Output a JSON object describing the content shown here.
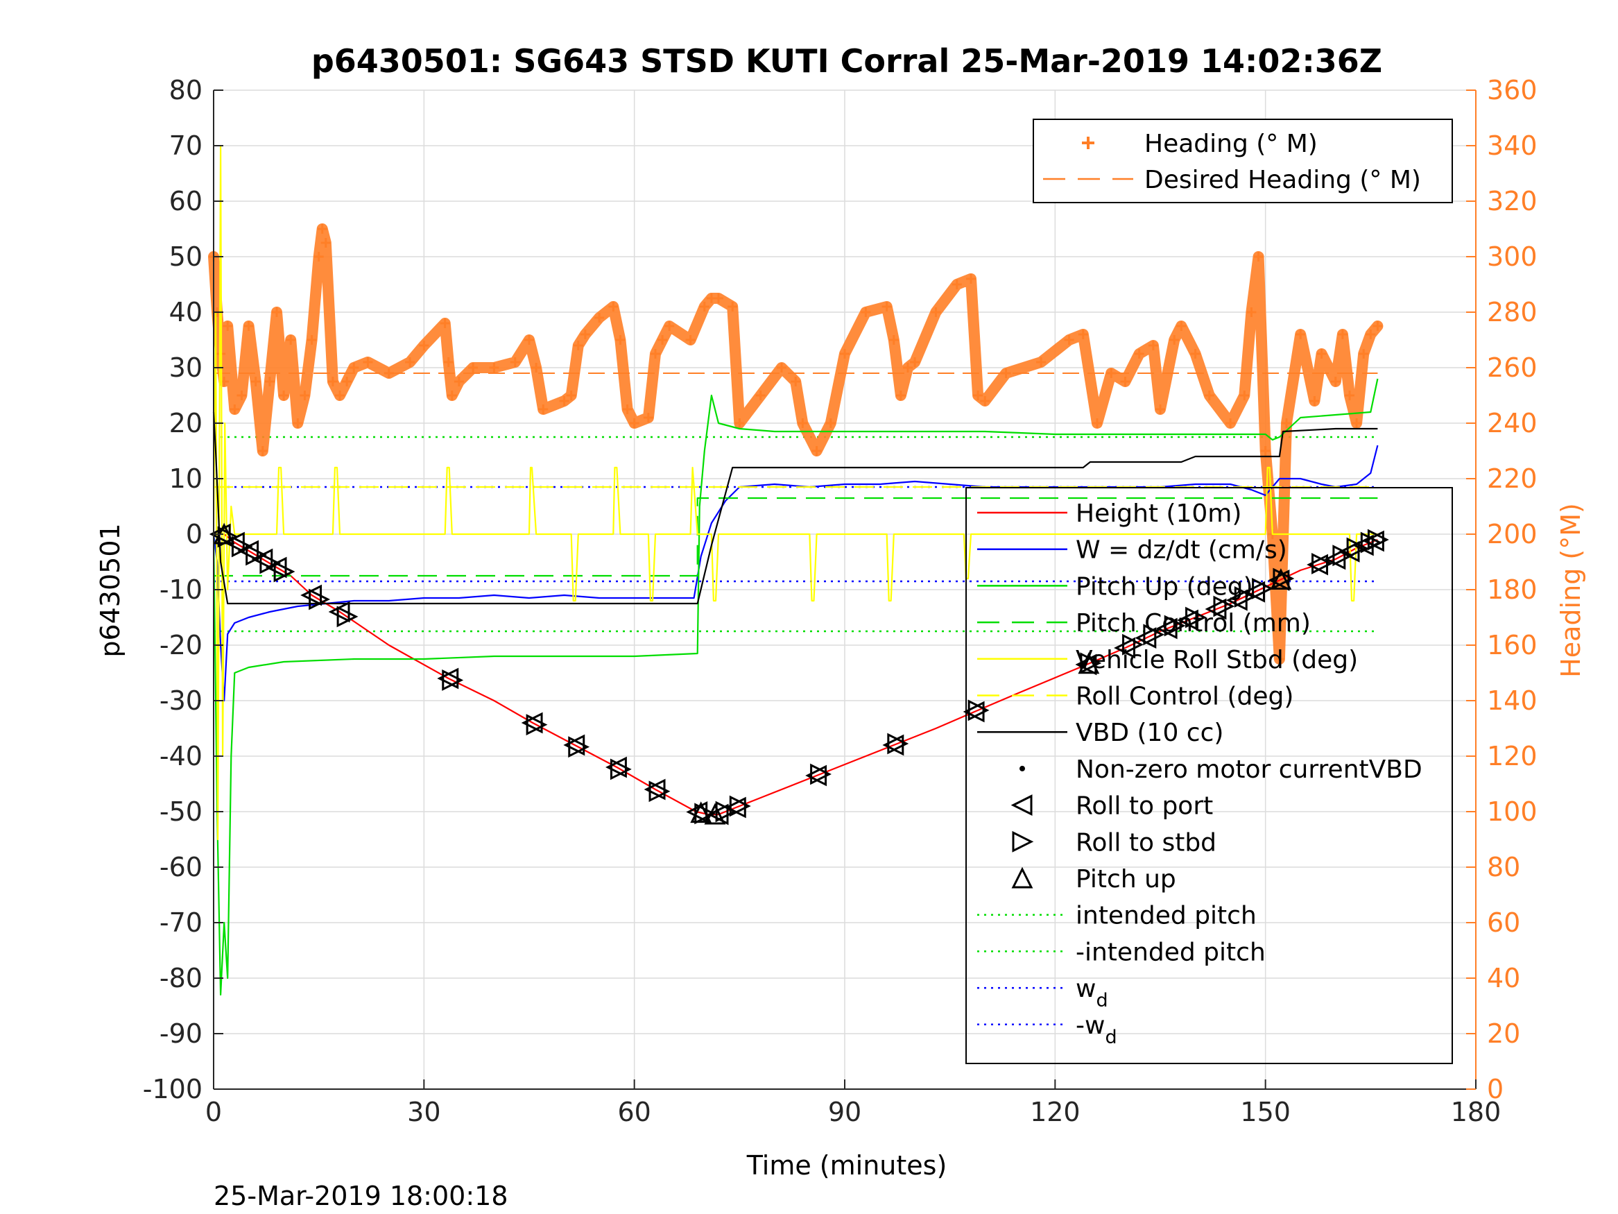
{
  "chart_data": {
    "type": "line",
    "title": "p6430501: SG643 STSD KUTI Corral 25-Mar-2019 14:02:36Z",
    "xlabel": "Time (minutes)",
    "ylabel_left": "p6430501",
    "ylabel_right": "Heading (°M)",
    "footer": "25-Mar-2019 18:00:18",
    "xlim": [
      0,
      180
    ],
    "ylim_left": [
      -100,
      80
    ],
    "ylim_right": [
      0,
      360
    ],
    "x_ticks": [
      0,
      30,
      60,
      90,
      120,
      150,
      180
    ],
    "x_tick_labels": [
      "0",
      "30",
      "60",
      "90",
      "120",
      "150",
      "180"
    ],
    "y_left_ticks": [
      80,
      70,
      60,
      50,
      40,
      30,
      20,
      10,
      0,
      -10,
      -20,
      -30,
      -40,
      -50,
      -60,
      -70,
      -80,
      -90,
      -100
    ],
    "y_left_tick_labels": [
      "80",
      "70",
      "60",
      "50",
      "40",
      "30",
      "20",
      "10",
      "0",
      "-10",
      "-20",
      "-30",
      "-40",
      "-50",
      "-60",
      "-70",
      "-80",
      "-90",
      "-100"
    ],
    "y_right_ticks": [
      360,
      340,
      320,
      300,
      280,
      260,
      240,
      220,
      200,
      180,
      160,
      140,
      120,
      100,
      80,
      60,
      40,
      20,
      0
    ],
    "y_right_tick_labels": [
      "360",
      "340",
      "320",
      "300",
      "280",
      "260",
      "240",
      "220",
      "200",
      "180",
      "160",
      "140",
      "120",
      "100",
      "80",
      "60",
      "40",
      "20",
      "0"
    ],
    "grid": true,
    "colors": {
      "height": "#ff0000",
      "w": "#0000ff",
      "pitch": "#00dd00",
      "roll": "#ffff00",
      "vbd": "#000000",
      "heading": "#ff7f27",
      "right_axis": "#ff7f27"
    },
    "legend_top": {
      "placement": "top-right",
      "entries": [
        {
          "label": "Heading (° M)",
          "marker": "plus",
          "color": "#ff7f27"
        },
        {
          "label": "Desired Heading (° M)",
          "marker": "dash",
          "color": "#ff7f27"
        }
      ]
    },
    "legend_main": {
      "placement": "right",
      "entries": [
        {
          "label": "Height (10m)",
          "marker": "line",
          "color": "#ff0000"
        },
        {
          "label": "W = dz/dt (cm/s)",
          "marker": "line",
          "color": "#0000ff"
        },
        {
          "label": "Pitch Up (deg)",
          "marker": "line",
          "color": "#00dd00"
        },
        {
          "label": "Pitch Control (mm)",
          "marker": "dash",
          "color": "#00dd00"
        },
        {
          "label": "Vehicle Roll Stbd (deg)",
          "marker": "line",
          "color": "#ffff00"
        },
        {
          "label": "Roll Control (deg)",
          "marker": "dash",
          "color": "#ffff00"
        },
        {
          "label": "VBD (10 cc)",
          "marker": "line",
          "color": "#000000"
        },
        {
          "label": "Non-zero motor currentVBD",
          "marker": "dot",
          "color": "#000000"
        },
        {
          "label": "Roll to port",
          "marker": "tri-left",
          "color": "#000000"
        },
        {
          "label": "Roll to stbd",
          "marker": "tri-right",
          "color": "#000000"
        },
        {
          "label": "Pitch up",
          "marker": "tri-up",
          "color": "#000000"
        },
        {
          "label": "intended pitch",
          "marker": "dotted",
          "color": "#00dd00"
        },
        {
          "label": "-intended pitch",
          "marker": "dotted",
          "color": "#00dd00"
        },
        {
          "label": "w",
          "sub": "d",
          "marker": "dotted",
          "color": "#0000ff"
        },
        {
          "label": "-w",
          "sub": "d",
          "marker": "dotted",
          "color": "#0000ff"
        }
      ]
    },
    "reference_lines": [
      {
        "name": "intended pitch",
        "y": 17.5,
        "color": "#00dd00"
      },
      {
        "name": "-intended pitch",
        "y": -17.5,
        "color": "#00dd00"
      },
      {
        "name": "w_d",
        "y": 8.5,
        "color": "#0000ff"
      },
      {
        "name": "-w_d",
        "y": -8.5,
        "color": "#0000ff"
      }
    ],
    "series": [
      {
        "name": "Height (10m)",
        "color": "#ff0000",
        "x": [
          0,
          1.5,
          3,
          5,
          7,
          9,
          11,
          14,
          16,
          18,
          25,
          33.5,
          40,
          45.5,
          51.5,
          57.5,
          63,
          68.8,
          70.5,
          72,
          74,
          78,
          86,
          92,
          97,
          103,
          108.5,
          115,
          124.5,
          130,
          135,
          140,
          145,
          150,
          155,
          160,
          163,
          166
        ],
        "y": [
          0,
          0,
          -1.5,
          -3,
          -4.5,
          -6,
          -7.5,
          -11,
          -12.5,
          -14,
          -20,
          -26,
          -30,
          -34,
          -38,
          -42,
          -46,
          -50,
          -50.5,
          -50.5,
          -49.5,
          -47.5,
          -43.5,
          -40.5,
          -38,
          -35,
          -32,
          -28.5,
          -23.5,
          -20.5,
          -17.5,
          -15,
          -12.5,
          -9.5,
          -6.5,
          -4.5,
          -2.5,
          -1
        ]
      },
      {
        "name": "W = dz/dt (cm/s)",
        "color": "#0000ff",
        "x": [
          0,
          0.5,
          1,
          1.5,
          2,
          3,
          5,
          8,
          12,
          16,
          20,
          25,
          30,
          35,
          40,
          45,
          50,
          55,
          60,
          65,
          68.5,
          69.5,
          71,
          73,
          75,
          80,
          85,
          90,
          95,
          100,
          105,
          110,
          115,
          120,
          125,
          130,
          135,
          140,
          145,
          148,
          150,
          152,
          155,
          158,
          160,
          163,
          165,
          166
        ],
        "y": [
          0,
          -5,
          -20,
          -30,
          -18,
          -16,
          -15,
          -14,
          -13,
          -12.5,
          -12,
          -12,
          -11.5,
          -11.5,
          -11,
          -11.5,
          -11,
          -11.5,
          -11.5,
          -11.5,
          -11.5,
          -4,
          2,
          6,
          8.5,
          9,
          8.5,
          9,
          9,
          9.5,
          9,
          8.5,
          8.5,
          8.5,
          8.5,
          8.5,
          8.5,
          9,
          9,
          8,
          7,
          10,
          10,
          9,
          8.5,
          9,
          11,
          16
        ]
      },
      {
        "name": "Pitch Up (deg)",
        "color": "#00dd00",
        "x": [
          0,
          0.5,
          1,
          1.5,
          2,
          2.5,
          3,
          5,
          10,
          20,
          30,
          40,
          50,
          60,
          69,
          69.3,
          70,
          71,
          72,
          75,
          80,
          90,
          100,
          110,
          120,
          130,
          140,
          150,
          151,
          152,
          155,
          160,
          165,
          166
        ],
        "y": [
          0,
          -50,
          -83,
          -70,
          -80,
          -40,
          -25,
          -24,
          -23,
          -22.5,
          -22.5,
          -22,
          -22,
          -22,
          -21.5,
          5,
          15,
          25,
          20,
          19,
          18.5,
          18.5,
          18.5,
          18.5,
          18,
          18,
          18,
          18,
          17,
          17.5,
          21,
          21.5,
          22,
          28
        ]
      },
      {
        "name": "Pitch Control (mm)",
        "color": "#00dd00",
        "dash": true,
        "x": [
          0,
          69,
          69,
          166
        ],
        "y": [
          -7.5,
          -7.5,
          6.5,
          6.5
        ]
      },
      {
        "name": "Vehicle Roll Stbd (deg)",
        "color": "#ffff00",
        "x": [
          0,
          0.3,
          0.6,
          1,
          1.3,
          1.6,
          2,
          2.5,
          3,
          5,
          7,
          8,
          9,
          9.3,
          9.6,
          10,
          12,
          14,
          16,
          17,
          17.3,
          17.6,
          18,
          20,
          30,
          33,
          33.3,
          33.6,
          34,
          45,
          45.2,
          45.4,
          46,
          51,
          51.3,
          51.6,
          52,
          57,
          57.2,
          57.5,
          58,
          62,
          62.3,
          62.6,
          63,
          68,
          68.3,
          69,
          71,
          71.3,
          71.6,
          72,
          85,
          85.3,
          85.6,
          86,
          96,
          96.3,
          96.6,
          97,
          107,
          107.3,
          107.6,
          108,
          125,
          135,
          145,
          150,
          150.3,
          150.6,
          151,
          160,
          162,
          162.3,
          162.6,
          163,
          165,
          166
        ],
        "y": [
          0,
          40,
          -55,
          70,
          -40,
          20,
          -10,
          5,
          0,
          0,
          0,
          0,
          0,
          12,
          12,
          0,
          0,
          0,
          0,
          0,
          12,
          12,
          0,
          0,
          0,
          0,
          12,
          12,
          0,
          0,
          12,
          12,
          0,
          0,
          -12,
          -12,
          0,
          0,
          12,
          12,
          0,
          0,
          -12,
          -12,
          0,
          0,
          12,
          0,
          0,
          -12,
          -12,
          0,
          0,
          -12,
          -12,
          0,
          0,
          -12,
          -12,
          0,
          0,
          -8,
          -8,
          0,
          0,
          0,
          0,
          0,
          12,
          12,
          0,
          0,
          0,
          -12,
          -12,
          0,
          0,
          0
        ]
      },
      {
        "name": "Roll Control (deg)",
        "color": "#ffff00",
        "dash": true,
        "x": [
          0,
          166
        ],
        "y": [
          8.5,
          8.5
        ]
      },
      {
        "name": "VBD (10 cc)",
        "color": "#000000",
        "x": [
          0,
          0.3,
          1,
          2,
          69,
          71,
          74,
          124,
          125,
          138,
          140,
          152,
          152.5,
          160,
          166
        ],
        "y": [
          22,
          15,
          -5,
          -12.5,
          -12.5,
          -2,
          12,
          12,
          13,
          13,
          14,
          14,
          18.5,
          19,
          19
        ]
      }
    ],
    "heading_series": {
      "name": "Heading (° M)",
      "color": "#ff7f27",
      "x": [
        0,
        0.5,
        1,
        1.5,
        2,
        3,
        4,
        5,
        6,
        7,
        8,
        9,
        10,
        11,
        12,
        13,
        14,
        15,
        15.5,
        16,
        17,
        18,
        19,
        20,
        22,
        25,
        28,
        30,
        33,
        33.5,
        34,
        35,
        37,
        40,
        43,
        45,
        46,
        47,
        50,
        51,
        52,
        53,
        55,
        57,
        58,
        59,
        60,
        62,
        63,
        64,
        65,
        68,
        70,
        71,
        72,
        74,
        75,
        78,
        81,
        83,
        84,
        86,
        88,
        90,
        93,
        96,
        97,
        98,
        99,
        100,
        103,
        106,
        108,
        109,
        110,
        113,
        118,
        122,
        124,
        126,
        128,
        130,
        132,
        134,
        135,
        137,
        138,
        140,
        142,
        145,
        147,
        148,
        149,
        150,
        151,
        152,
        153,
        155,
        157,
        158,
        160,
        161,
        162,
        163,
        164,
        165,
        166
      ],
      "y": [
        300,
        280,
        265,
        255,
        275,
        245,
        250,
        275,
        255,
        230,
        255,
        280,
        250,
        270,
        240,
        250,
        270,
        300,
        310,
        305,
        255,
        250,
        255,
        260,
        262,
        258,
        262,
        268,
        276,
        262,
        250,
        255,
        260,
        260,
        262,
        270,
        260,
        245,
        248,
        250,
        268,
        272,
        278,
        282,
        270,
        245,
        240,
        242,
        265,
        270,
        275,
        270,
        282,
        285,
        285,
        282,
        240,
        250,
        260,
        255,
        240,
        230,
        240,
        265,
        280,
        282,
        270,
        250,
        260,
        262,
        280,
        290,
        292,
        250,
        248,
        258,
        262,
        270,
        272,
        240,
        258,
        255,
        265,
        268,
        245,
        270,
        275,
        265,
        250,
        240,
        250,
        280,
        300,
        230,
        200,
        155,
        240,
        272,
        248,
        265,
        255,
        272,
        250,
        240,
        265,
        272,
        275
      ]
    },
    "desired_heading": {
      "name": "Desired Heading (° M)",
      "color": "#ff7f27",
      "y": 258
    },
    "markers": {
      "roll_to_port_x": [
        1,
        3,
        5,
        7,
        9,
        14,
        18,
        33.5,
        45.5,
        51.5,
        57.5,
        63,
        69,
        72,
        74.5,
        86,
        97,
        108.5,
        124.5,
        130,
        133,
        136,
        139,
        143,
        146,
        148.5,
        152,
        157.5,
        160,
        162,
        164,
        165.5
      ],
      "roll_to_stbd_x": [
        2,
        4,
        6,
        8,
        10,
        15,
        19,
        34,
        46,
        52,
        58,
        63.5,
        70,
        73,
        75,
        86.5,
        97.5,
        109,
        125,
        131,
        134,
        137,
        140,
        144,
        147,
        149.5,
        152.5,
        158,
        161,
        163,
        165,
        166
      ],
      "pitch_up_x": [
        1.5,
        69.5,
        71.5,
        124.8,
        152.2
      ]
    }
  }
}
